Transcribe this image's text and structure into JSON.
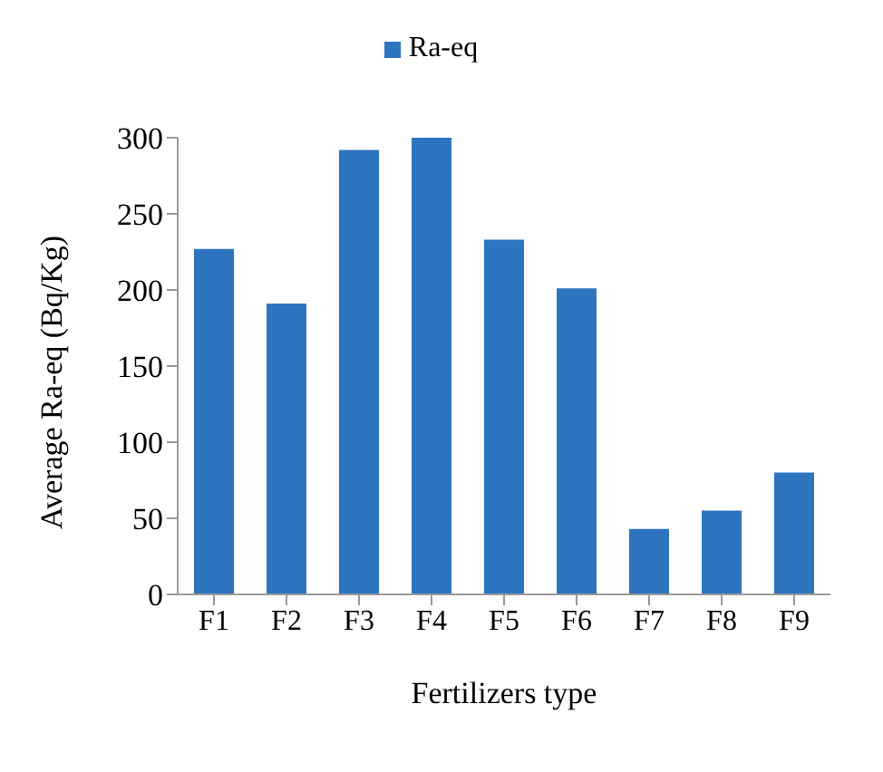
{
  "chart_data": {
    "type": "bar",
    "xlabel": "Fertilizers type",
    "ylabel": "Average Ra-eq (Bq/Kg)",
    "categories": [
      "F1",
      "F2",
      "F3",
      "F4",
      "F5",
      "F6",
      "F7",
      "F8",
      "F9"
    ],
    "series": [
      {
        "name": "Ra-eq",
        "color": "#2e75c0",
        "values": [
          227,
          191,
          292,
          300,
          233,
          201,
          43,
          55,
          80
        ]
      }
    ],
    "ylim": [
      0,
      300
    ],
    "yticks": [
      0,
      50,
      100,
      150,
      200,
      250,
      300
    ],
    "grid": false,
    "legend": "top"
  }
}
